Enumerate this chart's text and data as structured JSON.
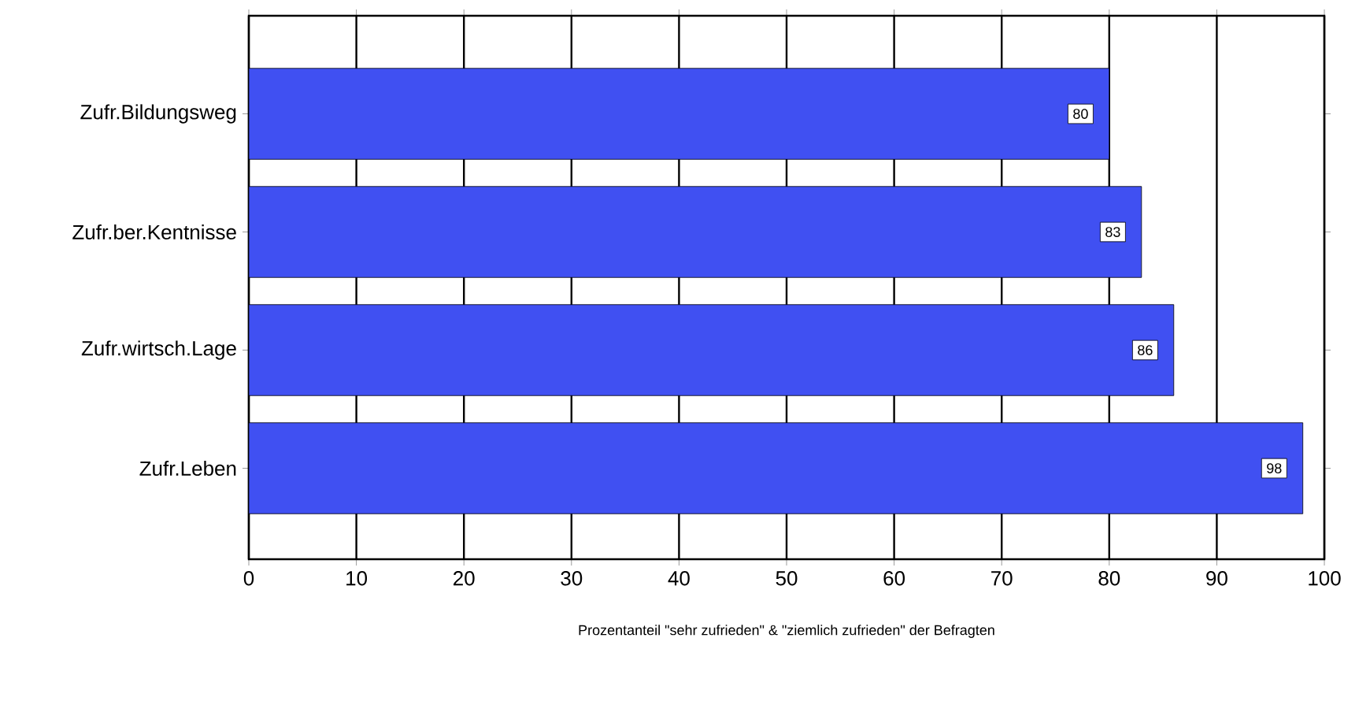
{
  "chart_data": {
    "type": "bar",
    "orientation": "horizontal",
    "xlabel": "Prozentanteil \"sehr zufrieden\" & \"ziemlich zufrieden\" der Befragten",
    "categories": [
      "Zufr.Bildungsweg",
      "Zufr.ber.Kentnisse",
      "Zufr.wirtsch.Lage",
      "Zufr.Leben"
    ],
    "values": [
      80,
      83,
      86,
      98
    ],
    "color": "#4050f2",
    "xlim": [
      0,
      100
    ],
    "xticks": [
      0,
      10,
      20,
      30,
      40,
      50,
      60,
      70,
      80,
      90,
      100
    ],
    "grid": "x",
    "data_labels": true
  }
}
